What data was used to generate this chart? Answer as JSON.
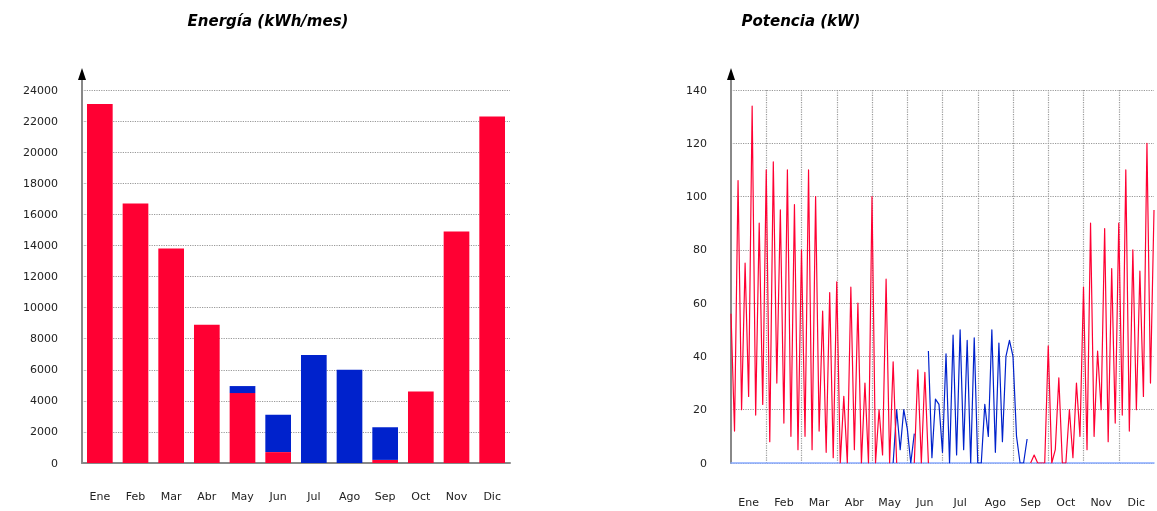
{
  "chart_data": [
    {
      "type": "bar",
      "title": "Energía (kWh/mes)",
      "stacked": true,
      "grid": "y",
      "categories": [
        "Ene",
        "Feb",
        "Mar",
        "Abr",
        "May",
        "Jun",
        "Jul",
        "Ago",
        "Sep",
        "Oct",
        "Nov",
        "Dic"
      ],
      "series": [
        {
          "color": "#ff0033",
          "values": [
            23100,
            16700,
            13800,
            8900,
            4500,
            700,
            0,
            0,
            200,
            4600,
            14900,
            22300
          ]
        },
        {
          "color": "#0022cc",
          "values": [
            0,
            0,
            0,
            0,
            450,
            2400,
            6950,
            6000,
            2100,
            0,
            0,
            0
          ]
        }
      ],
      "ylim": [
        0,
        24000
      ],
      "yticks": [
        0,
        2000,
        4000,
        6000,
        8000,
        10000,
        12000,
        14000,
        16000,
        18000,
        20000,
        22000,
        24000
      ]
    },
    {
      "type": "line",
      "title": "Potencia (kW)",
      "grid": true,
      "marker": "none",
      "line_style": "solid",
      "categories": [
        null,
        null,
        null,
        null,
        null,
        "Ene",
        null,
        null,
        null,
        null,
        null,
        null,
        null,
        null,
        null,
        "Feb",
        null,
        null,
        null,
        null,
        null,
        null,
        null,
        null,
        null,
        "Mar",
        null,
        null,
        null,
        null,
        null,
        null,
        null,
        null,
        null,
        "Abr",
        null,
        null,
        null,
        null,
        null,
        null,
        null,
        null,
        null,
        "May",
        null,
        null,
        null,
        null,
        null,
        null,
        null,
        null,
        null,
        "Jun",
        null,
        null,
        null,
        null,
        null,
        null,
        null,
        null,
        null,
        "Jul",
        null,
        null,
        null,
        null,
        null,
        null,
        null,
        null,
        null,
        "Ago",
        null,
        null,
        null,
        null,
        null,
        null,
        null,
        null,
        null,
        "Sep",
        null,
        null,
        null,
        null,
        null,
        null,
        null,
        null,
        null,
        "Oct",
        null,
        null,
        null,
        null,
        null,
        null,
        null,
        null,
        null,
        "Nov",
        null,
        null,
        null,
        null,
        null,
        null,
        null,
        null,
        null,
        "Dic",
        null,
        null,
        null,
        null,
        null
      ],
      "series": [
        {
          "color": "#ff0033",
          "values": [
            56,
            12,
            106,
            20,
            75,
            25,
            134,
            18,
            90,
            22,
            110,
            8,
            113,
            30,
            95,
            15,
            110,
            10,
            97,
            5,
            80,
            10,
            110,
            5,
            100,
            12,
            57,
            4,
            64,
            2,
            68,
            0,
            25,
            0,
            66,
            5,
            60,
            0,
            30,
            0,
            100,
            0,
            20,
            3,
            69,
            0,
            38,
            0,
            null,
            null,
            null,
            null,
            0,
            35,
            0,
            34,
            0,
            null,
            null,
            null,
            null,
            null,
            null,
            null,
            null,
            null,
            null,
            null,
            null,
            null,
            null,
            null,
            null,
            null,
            null,
            null,
            null,
            null,
            null,
            null,
            null,
            null,
            null,
            null,
            null,
            0,
            3,
            0,
            0,
            0,
            44,
            0,
            5,
            32,
            0,
            0,
            20,
            2,
            30,
            10,
            66,
            5,
            90,
            10,
            42,
            20,
            88,
            8,
            73,
            15,
            90,
            18,
            110,
            12,
            80,
            20,
            72,
            25,
            120,
            30,
            95
          ]
        },
        {
          "color": "#0022cc",
          "values": [
            null,
            null,
            null,
            null,
            null,
            null,
            null,
            null,
            null,
            null,
            null,
            null,
            null,
            null,
            null,
            null,
            null,
            null,
            null,
            null,
            null,
            null,
            null,
            null,
            null,
            null,
            null,
            null,
            null,
            null,
            null,
            null,
            null,
            null,
            null,
            null,
            null,
            null,
            null,
            null,
            null,
            null,
            null,
            null,
            null,
            null,
            0,
            20,
            5,
            20,
            13,
            0,
            11,
            null,
            null,
            null,
            42,
            2,
            24,
            22,
            4,
            41,
            0,
            48,
            3,
            50,
            5,
            46,
            0,
            47,
            0,
            0,
            22,
            10,
            50,
            4,
            45,
            8,
            40,
            46,
            40,
            10,
            0,
            0,
            9,
            null,
            null,
            null,
            null,
            null,
            null,
            null,
            null,
            null,
            null,
            null,
            null,
            null,
            null,
            null,
            null,
            null,
            null,
            null,
            null,
            null,
            null,
            null,
            null,
            null,
            null,
            null,
            null,
            null,
            null,
            null,
            null,
            null,
            null,
            null,
            null
          ]
        }
      ],
      "ylim": [
        0,
        140
      ],
      "yticks": [
        0,
        20,
        40,
        60,
        80,
        100,
        120,
        140
      ]
    }
  ]
}
